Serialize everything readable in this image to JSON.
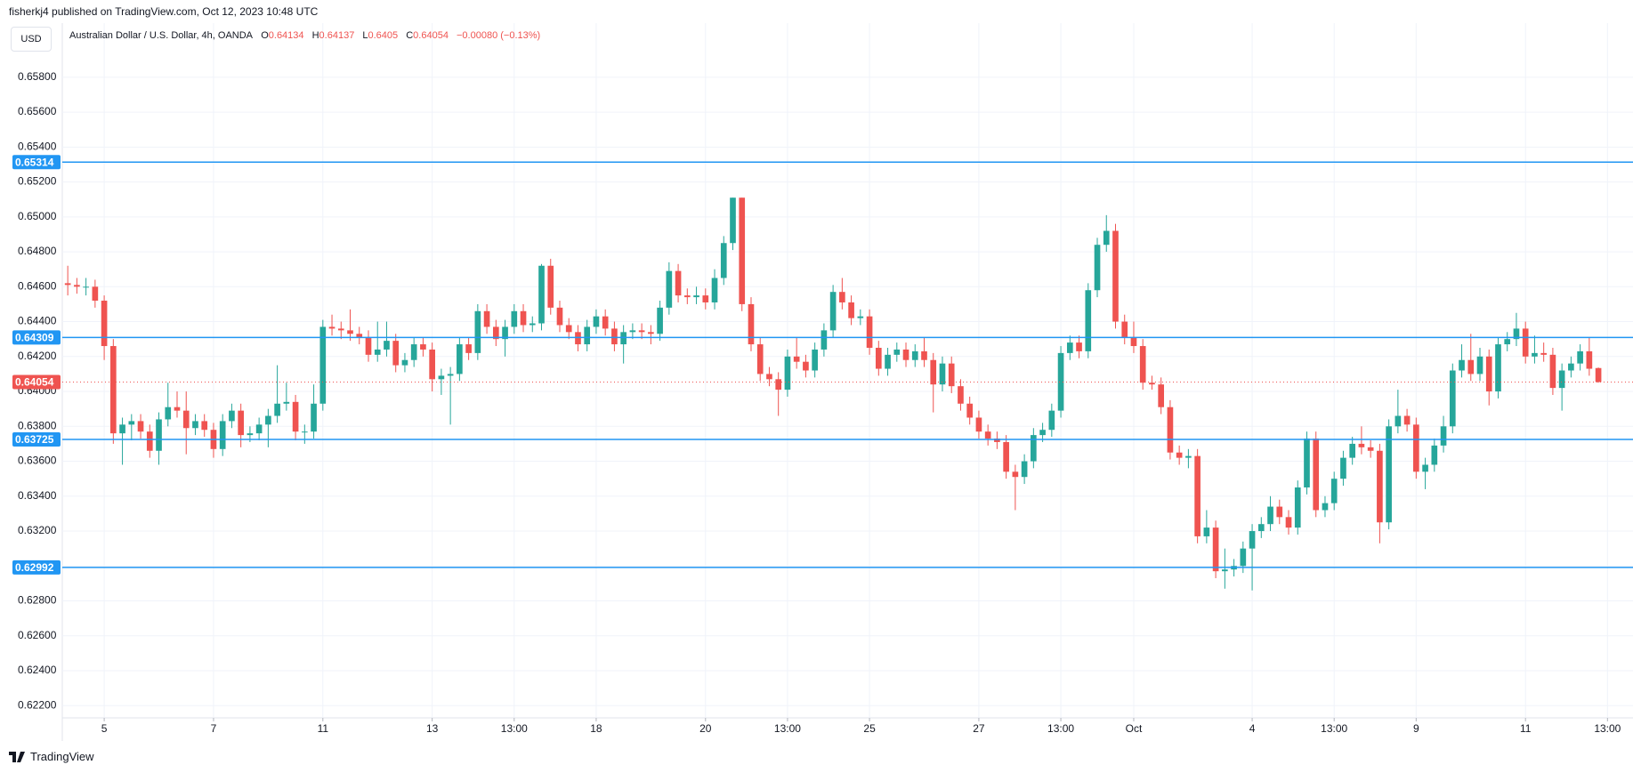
{
  "header": "fisherkj4 published on TradingView.com, Oct 12, 2023 10:48 UTC",
  "currency_button": "USD",
  "footer": "TradingView",
  "chart_data": {
    "type": "candlestick",
    "title": "Australian Dollar / U.S. Dollar, 4h, OANDA",
    "legend_labels": [
      "O",
      "H",
      "L",
      "C"
    ],
    "change": "−0.00080 (−0.13%)",
    "up_color": "#26a69a",
    "down_color": "#ef5350",
    "level_color": "#2196f3",
    "levels": [
      0.65314,
      0.64309,
      0.63725,
      0.62992
    ],
    "grid": true,
    "ylim": [
      0.6213,
      0.6611
    ],
    "yticks": [
      {
        "value": 0.658,
        "label": "0.65800"
      },
      {
        "value": 0.656,
        "label": "0.65600"
      },
      {
        "value": 0.654,
        "label": "0.65400"
      },
      {
        "value": 0.652,
        "label": "0.65200"
      },
      {
        "value": 0.65,
        "label": "0.65000"
      },
      {
        "value": 0.648,
        "label": "0.64800"
      },
      {
        "value": 0.646,
        "label": "0.64600"
      },
      {
        "value": 0.644,
        "label": "0.64400"
      },
      {
        "value": 0.642,
        "label": "0.64200"
      },
      {
        "value": 0.64,
        "label": "0.64000"
      },
      {
        "value": 0.638,
        "label": "0.63800"
      },
      {
        "value": 0.636,
        "label": "0.63600"
      },
      {
        "value": 0.634,
        "label": "0.63400"
      },
      {
        "value": 0.632,
        "label": "0.63200"
      },
      {
        "value": 0.63,
        "label": "0.63000"
      },
      {
        "value": 0.628,
        "label": "0.62800"
      },
      {
        "value": 0.626,
        "label": "0.62600"
      },
      {
        "value": 0.624,
        "label": "0.62400"
      },
      {
        "value": 0.622,
        "label": "0.62200"
      }
    ],
    "xlim": [
      -0.6,
      171.8
    ],
    "xticks": [
      {
        "value": 4,
        "label": "5"
      },
      {
        "value": 16,
        "label": "7"
      },
      {
        "value": 28,
        "label": "11"
      },
      {
        "value": 40,
        "label": "13"
      },
      {
        "value": 49,
        "label": "13:00"
      },
      {
        "value": 58,
        "label": "18"
      },
      {
        "value": 70,
        "label": "20"
      },
      {
        "value": 79,
        "label": "13:00"
      },
      {
        "value": 88,
        "label": "25"
      },
      {
        "value": 100,
        "label": "27"
      },
      {
        "value": 109,
        "label": "13:00"
      },
      {
        "value": 117,
        "label": "Oct"
      },
      {
        "value": 130,
        "label": "4"
      },
      {
        "value": 139,
        "label": "13:00"
      },
      {
        "value": 148,
        "label": "9"
      },
      {
        "value": 160,
        "label": "11"
      },
      {
        "value": 169,
        "label": "13:00"
      }
    ],
    "ohlc": [
      [
        0.6462,
        0.6472,
        0.6455,
        0.6461
      ],
      [
        0.6461,
        0.6465,
        0.6456,
        0.646
      ],
      [
        0.646,
        0.6465,
        0.6455,
        0.646
      ],
      [
        0.646,
        0.6464,
        0.6448,
        0.6452
      ],
      [
        0.6452,
        0.6455,
        0.6418,
        0.6426
      ],
      [
        0.6426,
        0.643,
        0.637,
        0.6376
      ],
      [
        0.6376,
        0.6385,
        0.6358,
        0.6381
      ],
      [
        0.6381,
        0.6387,
        0.6372,
        0.6383
      ],
      [
        0.6383,
        0.6387,
        0.6373,
        0.6377
      ],
      [
        0.6377,
        0.6381,
        0.6362,
        0.6366
      ],
      [
        0.6366,
        0.6388,
        0.6358,
        0.6384
      ],
      [
        0.6384,
        0.6405,
        0.638,
        0.6391
      ],
      [
        0.6391,
        0.64,
        0.6385,
        0.6389
      ],
      [
        0.6389,
        0.64,
        0.6364,
        0.6379
      ],
      [
        0.6379,
        0.6387,
        0.6375,
        0.6383
      ],
      [
        0.6383,
        0.6387,
        0.6374,
        0.6378
      ],
      [
        0.6378,
        0.6382,
        0.6362,
        0.6367
      ],
      [
        0.6367,
        0.6387,
        0.6363,
        0.6383
      ],
      [
        0.6383,
        0.6393,
        0.6379,
        0.6389
      ],
      [
        0.6389,
        0.6393,
        0.6368,
        0.6375
      ],
      [
        0.6375,
        0.638,
        0.6371,
        0.6376
      ],
      [
        0.6376,
        0.6385,
        0.6372,
        0.6381
      ],
      [
        0.6381,
        0.639,
        0.6368,
        0.6386
      ],
      [
        0.6386,
        0.6415,
        0.6382,
        0.6393
      ],
      [
        0.6393,
        0.6405,
        0.6389,
        0.6394
      ],
      [
        0.6394,
        0.6398,
        0.6372,
        0.6377
      ],
      [
        0.6377,
        0.6381,
        0.637,
        0.6377
      ],
      [
        0.6377,
        0.6404,
        0.6373,
        0.6393
      ],
      [
        0.6393,
        0.6441,
        0.6389,
        0.6437
      ],
      [
        0.6437,
        0.6444,
        0.6432,
        0.6436
      ],
      [
        0.6436,
        0.644,
        0.643,
        0.6435
      ],
      [
        0.6435,
        0.6447,
        0.6429,
        0.6433
      ],
      [
        0.6433,
        0.6437,
        0.6427,
        0.6431
      ],
      [
        0.6431,
        0.6435,
        0.6417,
        0.6421
      ],
      [
        0.6421,
        0.644,
        0.6417,
        0.6424
      ],
      [
        0.6424,
        0.644,
        0.642,
        0.6429
      ],
      [
        0.6429,
        0.6433,
        0.6411,
        0.6415
      ],
      [
        0.6415,
        0.6422,
        0.6411,
        0.6418
      ],
      [
        0.6418,
        0.6431,
        0.6414,
        0.6427
      ],
      [
        0.6427,
        0.6431,
        0.642,
        0.6424
      ],
      [
        0.6424,
        0.6428,
        0.64,
        0.6407
      ],
      [
        0.6407,
        0.6413,
        0.6398,
        0.6409
      ],
      [
        0.6409,
        0.6414,
        0.6381,
        0.641
      ],
      [
        0.641,
        0.6431,
        0.6406,
        0.6427
      ],
      [
        0.6427,
        0.6431,
        0.6418,
        0.6422
      ],
      [
        0.6422,
        0.645,
        0.6418,
        0.6446
      ],
      [
        0.6446,
        0.645,
        0.6433,
        0.6437
      ],
      [
        0.6437,
        0.6441,
        0.6426,
        0.643
      ],
      [
        0.643,
        0.6441,
        0.642,
        0.6437
      ],
      [
        0.6437,
        0.645,
        0.6433,
        0.6446
      ],
      [
        0.6446,
        0.645,
        0.6434,
        0.6438
      ],
      [
        0.6438,
        0.6443,
        0.6434,
        0.6439
      ],
      [
        0.6439,
        0.6473,
        0.6435,
        0.6472
      ],
      [
        0.6472,
        0.6476,
        0.6444,
        0.6448
      ],
      [
        0.6448,
        0.6452,
        0.6434,
        0.6438
      ],
      [
        0.6438,
        0.6442,
        0.643,
        0.6434
      ],
      [
        0.6434,
        0.6438,
        0.6423,
        0.6427
      ],
      [
        0.6427,
        0.6441,
        0.6423,
        0.6437
      ],
      [
        0.6437,
        0.6447,
        0.6433,
        0.6443
      ],
      [
        0.6443,
        0.6447,
        0.6432,
        0.6436
      ],
      [
        0.6436,
        0.644,
        0.6423,
        0.6427
      ],
      [
        0.6427,
        0.6438,
        0.6416,
        0.6434
      ],
      [
        0.6434,
        0.6439,
        0.643,
        0.6435
      ],
      [
        0.6435,
        0.6439,
        0.643,
        0.6434
      ],
      [
        0.6434,
        0.6438,
        0.6427,
        0.6433
      ],
      [
        0.6433,
        0.6452,
        0.6429,
        0.6448
      ],
      [
        0.6448,
        0.6474,
        0.6444,
        0.6469
      ],
      [
        0.6469,
        0.6473,
        0.6451,
        0.6455
      ],
      [
        0.6455,
        0.6459,
        0.645,
        0.6454
      ],
      [
        0.6454,
        0.646,
        0.645,
        0.6455
      ],
      [
        0.6455,
        0.6459,
        0.6447,
        0.6451
      ],
      [
        0.6451,
        0.647,
        0.6447,
        0.6465
      ],
      [
        0.6465,
        0.6489,
        0.6461,
        0.6485
      ],
      [
        0.6485,
        0.6511,
        0.6481,
        0.6511
      ],
      [
        0.6511,
        0.6511,
        0.6446,
        0.645
      ],
      [
        0.645,
        0.6454,
        0.6423,
        0.6427
      ],
      [
        0.6427,
        0.6431,
        0.6406,
        0.641
      ],
      [
        0.641,
        0.6414,
        0.6403,
        0.6407
      ],
      [
        0.6407,
        0.6411,
        0.6386,
        0.6401
      ],
      [
        0.6401,
        0.6424,
        0.6397,
        0.642
      ],
      [
        0.642,
        0.6431,
        0.6413,
        0.6417
      ],
      [
        0.6417,
        0.6421,
        0.6408,
        0.6412
      ],
      [
        0.6412,
        0.6428,
        0.6408,
        0.6424
      ],
      [
        0.6424,
        0.6439,
        0.642,
        0.6435
      ],
      [
        0.6435,
        0.6461,
        0.6431,
        0.6457
      ],
      [
        0.6457,
        0.6465,
        0.6447,
        0.6451
      ],
      [
        0.6451,
        0.6455,
        0.6438,
        0.6442
      ],
      [
        0.6442,
        0.6447,
        0.6438,
        0.6443
      ],
      [
        0.6443,
        0.6447,
        0.6421,
        0.6425
      ],
      [
        0.6425,
        0.6429,
        0.6409,
        0.6413
      ],
      [
        0.6413,
        0.6425,
        0.6409,
        0.6421
      ],
      [
        0.6421,
        0.6428,
        0.6417,
        0.6424
      ],
      [
        0.6424,
        0.6428,
        0.6414,
        0.6418
      ],
      [
        0.6418,
        0.6427,
        0.6414,
        0.6423
      ],
      [
        0.6423,
        0.6431,
        0.6414,
        0.6418
      ],
      [
        0.6418,
        0.6422,
        0.6388,
        0.6404
      ],
      [
        0.6404,
        0.642,
        0.64,
        0.6416
      ],
      [
        0.6416,
        0.642,
        0.6399,
        0.6403
      ],
      [
        0.6403,
        0.6407,
        0.6389,
        0.6393
      ],
      [
        0.6393,
        0.6397,
        0.6381,
        0.6385
      ],
      [
        0.6385,
        0.6389,
        0.6373,
        0.6377
      ],
      [
        0.6377,
        0.6381,
        0.6369,
        0.6373
      ],
      [
        0.6373,
        0.6377,
        0.6367,
        0.6371
      ],
      [
        0.6371,
        0.6375,
        0.635,
        0.6354
      ],
      [
        0.6354,
        0.6358,
        0.6332,
        0.6351
      ],
      [
        0.6351,
        0.6364,
        0.6347,
        0.636
      ],
      [
        0.636,
        0.6379,
        0.6356,
        0.6375
      ],
      [
        0.6375,
        0.6382,
        0.6371,
        0.6378
      ],
      [
        0.6378,
        0.6393,
        0.6374,
        0.6389
      ],
      [
        0.6389,
        0.6426,
        0.6385,
        0.6422
      ],
      [
        0.6422,
        0.6432,
        0.6418,
        0.6428
      ],
      [
        0.6428,
        0.6432,
        0.6419,
        0.6423
      ],
      [
        0.6423,
        0.6462,
        0.6419,
        0.6458
      ],
      [
        0.6458,
        0.6488,
        0.6454,
        0.6484
      ],
      [
        0.6484,
        0.6501,
        0.648,
        0.6492
      ],
      [
        0.6492,
        0.6496,
        0.6436,
        0.644
      ],
      [
        0.644,
        0.6444,
        0.6427,
        0.6431
      ],
      [
        0.6431,
        0.644,
        0.6422,
        0.6426
      ],
      [
        0.6426,
        0.643,
        0.6401,
        0.6405
      ],
      [
        0.6405,
        0.6409,
        0.6401,
        0.6404
      ],
      [
        0.6404,
        0.6408,
        0.6387,
        0.6391
      ],
      [
        0.6391,
        0.6395,
        0.6361,
        0.6365
      ],
      [
        0.6365,
        0.6369,
        0.6358,
        0.6362
      ],
      [
        0.6362,
        0.6367,
        0.6356,
        0.6363
      ],
      [
        0.6363,
        0.6367,
        0.6313,
        0.6317
      ],
      [
        0.6317,
        0.6332,
        0.6313,
        0.6322
      ],
      [
        0.6322,
        0.6326,
        0.6293,
        0.6297
      ],
      [
        0.6297,
        0.631,
        0.6287,
        0.6298
      ],
      [
        0.6298,
        0.6304,
        0.6294,
        0.63
      ],
      [
        0.63,
        0.6314,
        0.6296,
        0.631
      ],
      [
        0.631,
        0.6324,
        0.6286,
        0.632
      ],
      [
        0.632,
        0.6328,
        0.6316,
        0.6324
      ],
      [
        0.6324,
        0.634,
        0.632,
        0.6334
      ],
      [
        0.6334,
        0.6338,
        0.6324,
        0.6328
      ],
      [
        0.6328,
        0.6332,
        0.6318,
        0.6322
      ],
      [
        0.6322,
        0.6349,
        0.6318,
        0.6345
      ],
      [
        0.6345,
        0.6377,
        0.6341,
        0.6373
      ],
      [
        0.6373,
        0.6377,
        0.6328,
        0.6332
      ],
      [
        0.6332,
        0.634,
        0.6328,
        0.6336
      ],
      [
        0.6336,
        0.6354,
        0.6332,
        0.635
      ],
      [
        0.635,
        0.6366,
        0.6346,
        0.6362
      ],
      [
        0.6362,
        0.6374,
        0.6358,
        0.637
      ],
      [
        0.637,
        0.638,
        0.6364,
        0.6368
      ],
      [
        0.6368,
        0.6372,
        0.6362,
        0.6366
      ],
      [
        0.6366,
        0.637,
        0.6313,
        0.6325
      ],
      [
        0.6325,
        0.6384,
        0.6321,
        0.638
      ],
      [
        0.638,
        0.6401,
        0.6376,
        0.6386
      ],
      [
        0.6386,
        0.639,
        0.6377,
        0.6381
      ],
      [
        0.6381,
        0.6385,
        0.635,
        0.6354
      ],
      [
        0.6354,
        0.6362,
        0.6344,
        0.6358
      ],
      [
        0.6358,
        0.6373,
        0.6354,
        0.6369
      ],
      [
        0.6369,
        0.6386,
        0.6365,
        0.638
      ],
      [
        0.638,
        0.6416,
        0.6376,
        0.6412
      ],
      [
        0.6412,
        0.6427,
        0.6408,
        0.6418
      ],
      [
        0.6418,
        0.6433,
        0.6406,
        0.641
      ],
      [
        0.641,
        0.6425,
        0.6406,
        0.642
      ],
      [
        0.642,
        0.6424,
        0.6392,
        0.64
      ],
      [
        0.64,
        0.6431,
        0.6396,
        0.6427
      ],
      [
        0.6427,
        0.6434,
        0.6423,
        0.643
      ],
      [
        0.643,
        0.6445,
        0.6426,
        0.6436
      ],
      [
        0.6436,
        0.644,
        0.6416,
        0.642
      ],
      [
        0.642,
        0.6432,
        0.6416,
        0.6422
      ],
      [
        0.6422,
        0.6428,
        0.6417,
        0.6421
      ],
      [
        0.6421,
        0.6425,
        0.6398,
        0.6402
      ],
      [
        0.6402,
        0.6416,
        0.6389,
        0.6412
      ],
      [
        0.6412,
        0.642,
        0.6408,
        0.6416
      ],
      [
        0.6416,
        0.6427,
        0.6412,
        0.6423
      ],
      [
        0.6423,
        0.6431,
        0.6409,
        0.6413
      ],
      [
        0.64134,
        0.64137,
        0.6405,
        0.64054
      ]
    ]
  }
}
